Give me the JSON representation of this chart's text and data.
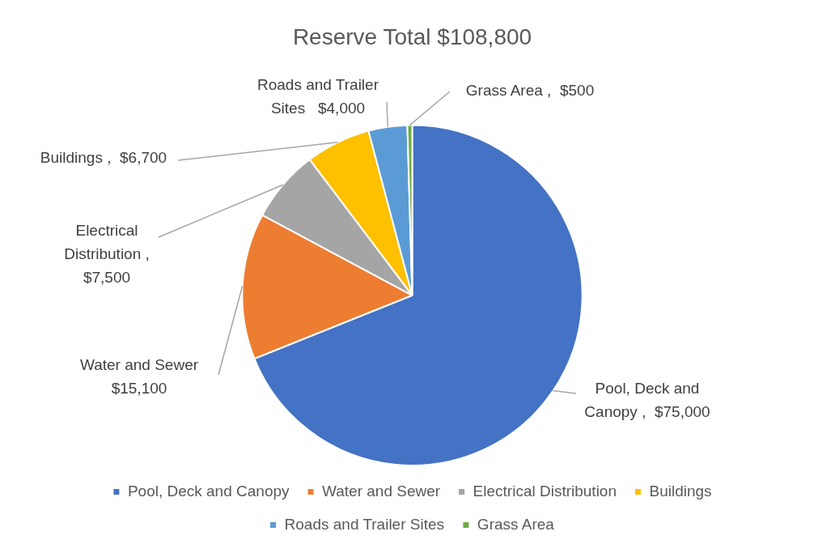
{
  "chart_data": {
    "type": "pie",
    "title": "Reserve Total $108,800",
    "categories": [
      "Pool, Deck and Canopy",
      "Water and Sewer",
      "Electrical Distribution",
      "Buildings",
      "Roads and Trailer Sites",
      "Grass Area"
    ],
    "values": [
      75000,
      15100,
      7500,
      6700,
      4000,
      500
    ],
    "colors": [
      "#4472c4",
      "#ed7d31",
      "#a5a5a5",
      "#ffc000",
      "#5b9bd5",
      "#70ad47"
    ],
    "value_labels": [
      "Pool, Deck and Canopy ,  $75,000",
      "Water and Sewer $15,100",
      "Electrical Distribution , $7,500",
      "Buildings ,  $6,700",
      "Roads and Trailer Sites   $4,000",
      "Grass Area ,  $500"
    ],
    "legend": "bottom"
  }
}
